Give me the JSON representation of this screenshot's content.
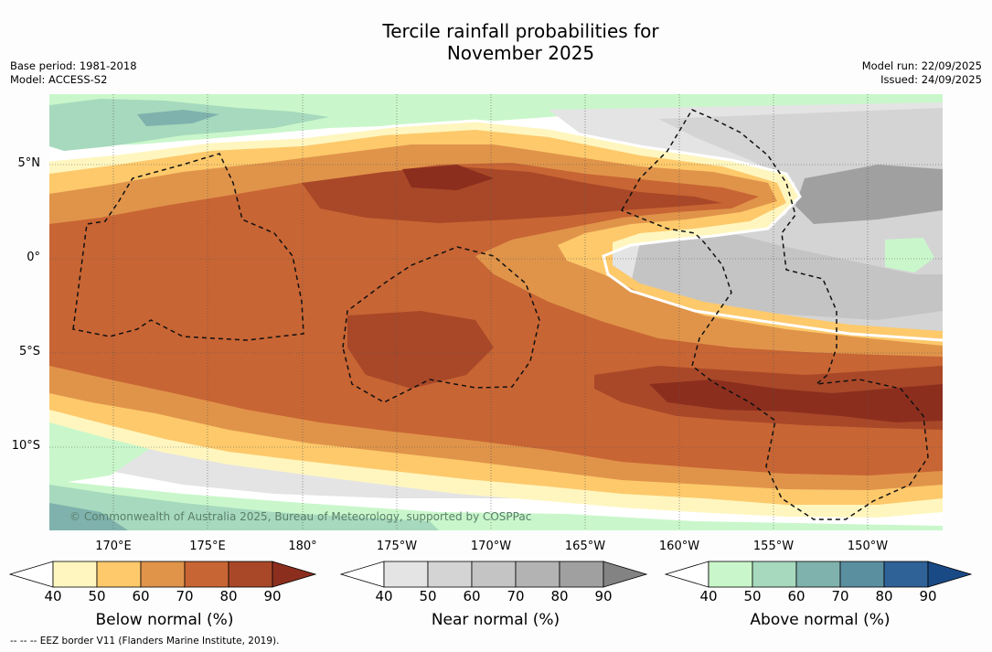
{
  "title_lines": [
    "Tercile rainfall probabilities for",
    "November 2025"
  ],
  "meta_left": [
    "Base period: 1981-2018",
    "Model: ACCESS-S2"
  ],
  "meta_right": [
    "Model run: 22/09/2025",
    "Issued: 24/09/2025"
  ],
  "lat_labels": [
    "5°N",
    "0°",
    "5°S",
    "10°S"
  ],
  "lon_labels": [
    "170°E",
    "175°E",
    "180°",
    "175°W",
    "170°W",
    "165°W",
    "160°W",
    "155°W",
    "150°W"
  ],
  "copyright": "© Commonwealth of Australia 2025, Bureau of Meteorology, supported by COSPPac",
  "colorbars": {
    "below": {
      "label": "Below normal (%)",
      "ticks": [
        "40",
        "50",
        "60",
        "70",
        "80",
        "90"
      ],
      "colors": [
        "#fff6bf",
        "#fdc96b",
        "#e0944a",
        "#c86534",
        "#a94828",
        "#8b2e1e"
      ]
    },
    "near": {
      "label": "Near normal (%)",
      "ticks": [
        "40",
        "50",
        "60",
        "70",
        "80",
        "90"
      ],
      "colors": [
        "#e4e4e4",
        "#d4d4d4",
        "#c4c4c4",
        "#b3b3b3",
        "#a0a0a0",
        "#838383"
      ]
    },
    "above": {
      "label": "Above normal (%)",
      "ticks": [
        "40",
        "50",
        "60",
        "70",
        "80",
        "90"
      ],
      "colors": [
        "#c9f7cb",
        "#a6d9bd",
        "#7fb2ad",
        "#5a8fa0",
        "#2f6296",
        "#1a4a86"
      ]
    }
  },
  "footnote": "-- -- -- EEZ border V11 (Flanders Marine Institute, 2019)."
}
